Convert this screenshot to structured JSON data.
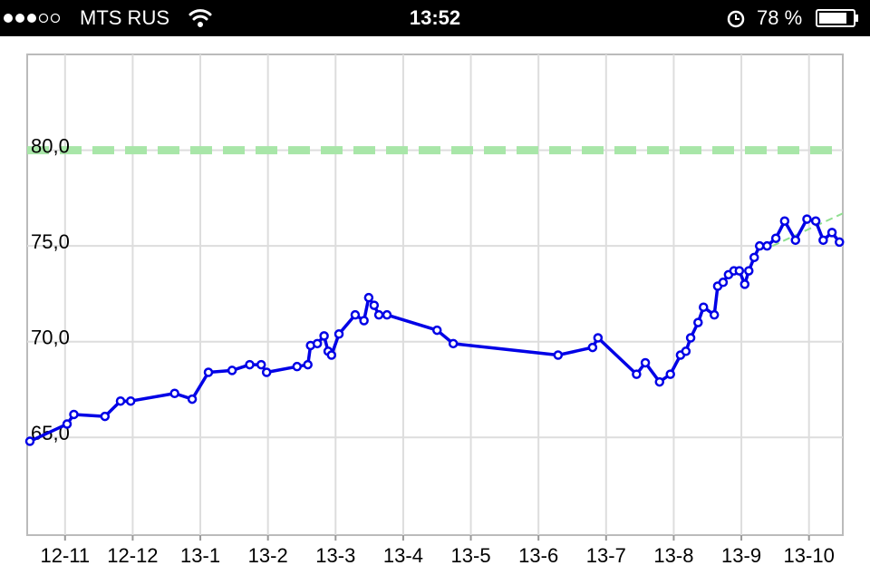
{
  "status_bar": {
    "carrier": "MTS RUS",
    "time": "13:52",
    "battery": "78 %"
  },
  "chart_data": {
    "type": "line",
    "x": [
      -0.52,
      0.03,
      0.13,
      0.59,
      0.82,
      0.97,
      1.62,
      1.88,
      2.12,
      2.47,
      2.73,
      2.9,
      2.98,
      3.43,
      3.59,
      3.63,
      3.73,
      3.83,
      3.89,
      3.94,
      4.05,
      4.29,
      4.42,
      4.49,
      4.57,
      4.64,
      4.76,
      5.5,
      5.74,
      7.29,
      7.8,
      7.88,
      8.45,
      8.58,
      8.79,
      8.95,
      9.1,
      9.18,
      9.25,
      9.36,
      9.44,
      9.6,
      9.65,
      9.73,
      9.81,
      9.89,
      9.97,
      10.05,
      10.11,
      10.19,
      10.27,
      10.38,
      10.51,
      10.64,
      10.8,
      10.97,
      11.1,
      11.21,
      11.34,
      11.45
    ],
    "series": [
      {
        "color": "#0000e6",
        "values": [
          64.8,
          65.7,
          66.2,
          66.1,
          66.9,
          66.9,
          67.3,
          67.0,
          68.4,
          68.5,
          68.8,
          68.8,
          68.4,
          68.7,
          68.8,
          69.8,
          69.9,
          70.3,
          69.5,
          69.3,
          70.4,
          71.4,
          71.1,
          72.3,
          71.9,
          71.4,
          71.4,
          70.6,
          69.9,
          69.3,
          69.7,
          70.2,
          68.3,
          68.9,
          67.9,
          68.3,
          69.3,
          69.5,
          70.2,
          71.0,
          71.8,
          71.4,
          72.9,
          73.1,
          73.5,
          73.7,
          73.7,
          73.0,
          73.7,
          74.4,
          75.0,
          75.0,
          75.4,
          76.3,
          75.3,
          76.4,
          76.3,
          75.3,
          75.7,
          75.2
        ]
      }
    ],
    "target": 80,
    "target_color": "#a8e6a8",
    "trend": {
      "x": [
        10.46,
        11.5
      ],
      "values": [
        75.0,
        76.7
      ],
      "color": "#90e090"
    },
    "xlim": [
      -0.56,
      11.5
    ],
    "ylim": [
      59.9,
      85
    ],
    "xticks": [
      {
        "value": 0,
        "label": "12-11"
      },
      {
        "value": 1,
        "label": "12-12"
      },
      {
        "value": 2,
        "label": "13-1"
      },
      {
        "value": 3,
        "label": "13-2"
      },
      {
        "value": 4,
        "label": "13-3"
      },
      {
        "value": 5,
        "label": "13-4"
      },
      {
        "value": 6,
        "label": "13-5"
      },
      {
        "value": 7,
        "label": "13-6"
      },
      {
        "value": 8,
        "label": "13-7"
      },
      {
        "value": 9,
        "label": "13-8"
      },
      {
        "value": 10,
        "label": "13-9"
      },
      {
        "value": 11,
        "label": "13-10"
      }
    ],
    "yticks": [
      {
        "value": 65,
        "label": "65,0"
      },
      {
        "value": 70,
        "label": "70,0"
      },
      {
        "value": 75,
        "label": "75,0"
      },
      {
        "value": 80,
        "label": "80,0"
      }
    ],
    "grid": true
  }
}
